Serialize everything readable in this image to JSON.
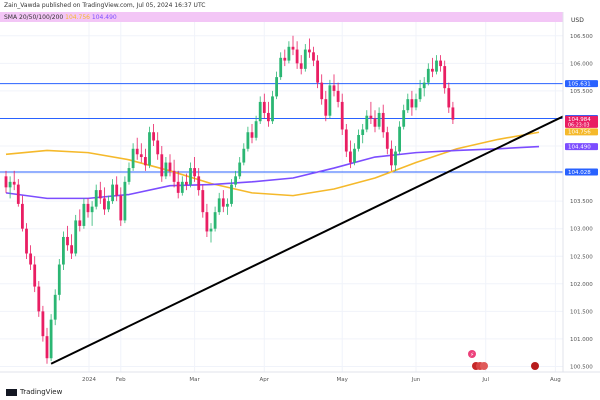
{
  "publisher_line": "Zain_Vawda published on TradingView.com, Jul 05, 2024 16:37 UTC",
  "indicator": {
    "label": "SMA 20/50/100/200",
    "values": [
      {
        "text": "104.756",
        "color": "#f5b92b"
      },
      {
        "text": "104.490",
        "color": "#7c4dff"
      }
    ]
  },
  "currency": "USD",
  "brand": "TradingView",
  "colors": {
    "up": "#2bb673",
    "down": "#e91e63",
    "sma_fast": "#f5b92b",
    "sma_slow": "#7c4dff",
    "hline": "#2962ff",
    "trendline": "#000000",
    "header_band": "#f3c6f6"
  },
  "chart_data": {
    "type": "candlestick",
    "x": [
      "2024",
      "Feb",
      "Mar",
      "Apr",
      "May",
      "Jun",
      "Jul",
      "Aug"
    ],
    "y_ticks": [
      "106.500",
      "106.000",
      "105.500",
      "105.000",
      "104.500",
      "104.000",
      "103.500",
      "103.000",
      "102.500",
      "102.000",
      "101.500",
      "101.000",
      "100.500"
    ],
    "ylim": [
      100.4,
      106.75
    ],
    "horizontal_levels": [
      105.631,
      105.0,
      104.028
    ],
    "price_labels": [
      {
        "text": "105.631",
        "color": "#2962ff",
        "value": 105.631
      },
      {
        "text": "105.000",
        "color": "#2962ff",
        "value": 105.0
      },
      {
        "text": "104.984",
        "color": "#e91e63",
        "value": 104.984,
        "sub": "06:23:03"
      },
      {
        "text": "104.756",
        "color": "#f5b92b",
        "value": 104.756
      },
      {
        "text": "104.490",
        "color": "#7c4dff",
        "value": 104.49
      },
      {
        "text": "104.028",
        "color": "#2962ff",
        "value": 104.028
      }
    ],
    "series": [
      {
        "kind": "sma",
        "color": "#f5b92b",
        "x": [
          0,
          10,
          20,
          30,
          40,
          50,
          60,
          70,
          80,
          90,
          100,
          110,
          120,
          130
        ],
        "y": [
          104.35,
          104.42,
          104.38,
          104.25,
          104.05,
          103.82,
          103.65,
          103.6,
          103.72,
          103.92,
          104.2,
          104.45,
          104.62,
          104.75
        ]
      },
      {
        "kind": "sma",
        "color": "#7c4dff",
        "x": [
          0,
          10,
          20,
          30,
          40,
          50,
          60,
          70,
          80,
          90,
          100,
          110,
          120,
          130
        ],
        "y": [
          103.65,
          103.55,
          103.55,
          103.62,
          103.78,
          103.8,
          103.85,
          103.92,
          104.1,
          104.3,
          104.38,
          104.42,
          104.45,
          104.49
        ]
      }
    ],
    "trendline": {
      "from": [
        11,
        100.55
      ],
      "to": [
        151,
        105.58
      ]
    },
    "candles": [
      [
        103.95,
        104.05,
        103.65,
        103.75
      ],
      [
        103.75,
        103.95,
        103.55,
        103.85
      ],
      [
        103.85,
        104.05,
        103.7,
        103.8
      ],
      [
        103.8,
        103.9,
        103.4,
        103.45
      ],
      [
        103.45,
        103.6,
        102.95,
        103.0
      ],
      [
        103.0,
        103.1,
        102.45,
        102.55
      ],
      [
        102.55,
        102.7,
        102.25,
        102.35
      ],
      [
        102.35,
        102.5,
        101.85,
        101.95
      ],
      [
        101.95,
        102.05,
        101.4,
        101.5
      ],
      [
        101.5,
        101.6,
        100.95,
        101.05
      ],
      [
        101.05,
        101.2,
        100.55,
        100.65
      ],
      [
        100.65,
        101.45,
        100.6,
        101.35
      ],
      [
        101.35,
        101.9,
        101.25,
        101.8
      ],
      [
        101.8,
        102.45,
        101.7,
        102.35
      ],
      [
        102.35,
        102.95,
        102.25,
        102.85
      ],
      [
        102.85,
        103.05,
        102.6,
        102.7
      ],
      [
        102.7,
        102.9,
        102.45,
        102.55
      ],
      [
        102.55,
        103.25,
        102.5,
        103.15
      ],
      [
        103.15,
        103.35,
        102.95,
        103.05
      ],
      [
        103.05,
        103.55,
        103.0,
        103.45
      ],
      [
        103.45,
        103.55,
        103.2,
        103.3
      ],
      [
        103.3,
        103.5,
        103.05,
        103.4
      ],
      [
        103.4,
        103.8,
        103.35,
        103.7
      ],
      [
        103.7,
        103.85,
        103.45,
        103.55
      ],
      [
        103.55,
        103.75,
        103.25,
        103.35
      ],
      [
        103.35,
        103.6,
        103.3,
        103.5
      ],
      [
        103.5,
        103.9,
        103.45,
        103.8
      ],
      [
        103.8,
        103.95,
        103.5,
        103.6
      ],
      [
        103.6,
        103.75,
        103.05,
        103.15
      ],
      [
        103.15,
        103.95,
        103.1,
        103.85
      ],
      [
        103.85,
        104.2,
        103.8,
        104.1
      ],
      [
        104.1,
        104.55,
        104.05,
        104.45
      ],
      [
        104.45,
        104.65,
        104.25,
        104.35
      ],
      [
        104.35,
        104.55,
        104.2,
        104.3
      ],
      [
        104.3,
        104.45,
        104.05,
        104.15
      ],
      [
        104.15,
        104.85,
        104.1,
        104.75
      ],
      [
        104.75,
        104.9,
        104.5,
        104.6
      ],
      [
        104.6,
        104.75,
        104.25,
        104.35
      ],
      [
        104.35,
        104.5,
        103.85,
        103.95
      ],
      [
        103.95,
        104.3,
        103.9,
        104.2
      ],
      [
        104.2,
        104.35,
        103.95,
        104.05
      ],
      [
        104.05,
        104.25,
        103.75,
        103.85
      ],
      [
        103.85,
        104.05,
        103.55,
        103.65
      ],
      [
        103.65,
        103.95,
        103.6,
        103.85
      ],
      [
        103.85,
        104.0,
        103.7,
        103.8
      ],
      [
        103.8,
        104.2,
        103.75,
        104.1
      ],
      [
        104.1,
        104.3,
        103.85,
        103.95
      ],
      [
        103.95,
        104.1,
        103.6,
        103.7
      ],
      [
        103.7,
        103.8,
        103.2,
        103.3
      ],
      [
        103.3,
        103.45,
        102.85,
        102.95
      ],
      [
        102.95,
        103.1,
        102.75,
        103.0
      ],
      [
        103.0,
        103.4,
        102.95,
        103.3
      ],
      [
        103.3,
        103.65,
        103.25,
        103.55
      ],
      [
        103.55,
        103.7,
        103.3,
        103.4
      ],
      [
        103.4,
        103.55,
        103.25,
        103.45
      ],
      [
        103.45,
        103.9,
        103.4,
        103.8
      ],
      [
        103.8,
        104.05,
        103.75,
        103.95
      ],
      [
        103.95,
        104.3,
        103.9,
        104.2
      ],
      [
        104.2,
        104.55,
        104.15,
        104.45
      ],
      [
        104.45,
        104.85,
        104.4,
        104.75
      ],
      [
        104.75,
        104.9,
        104.55,
        104.65
      ],
      [
        104.65,
        105.05,
        104.6,
        104.95
      ],
      [
        104.95,
        105.4,
        104.9,
        105.3
      ],
      [
        105.3,
        105.45,
        105.0,
        105.1
      ],
      [
        105.1,
        105.3,
        104.85,
        104.95
      ],
      [
        104.95,
        105.5,
        104.9,
        105.4
      ],
      [
        105.4,
        105.85,
        105.35,
        105.75
      ],
      [
        105.75,
        106.2,
        105.7,
        106.1
      ],
      [
        106.1,
        106.25,
        105.95,
        106.05
      ],
      [
        106.05,
        106.4,
        106.0,
        106.3
      ],
      [
        106.3,
        106.5,
        106.15,
        106.25
      ],
      [
        106.25,
        106.4,
        105.9,
        106.0
      ],
      [
        106.0,
        106.15,
        105.8,
        105.9
      ],
      [
        105.9,
        106.35,
        105.85,
        106.25
      ],
      [
        106.25,
        106.45,
        106.1,
        106.2
      ],
      [
        106.2,
        106.3,
        105.95,
        106.05
      ],
      [
        106.05,
        106.15,
        105.55,
        105.65
      ],
      [
        105.65,
        105.8,
        105.25,
        105.35
      ],
      [
        105.35,
        105.5,
        104.95,
        105.05
      ],
      [
        105.05,
        105.7,
        105.0,
        105.6
      ],
      [
        105.6,
        105.8,
        105.4,
        105.5
      ],
      [
        105.5,
        105.65,
        105.2,
        105.3
      ],
      [
        105.3,
        105.45,
        104.7,
        104.8
      ],
      [
        104.8,
        104.9,
        104.3,
        104.4
      ],
      [
        104.4,
        104.6,
        104.1,
        104.2
      ],
      [
        104.2,
        104.55,
        104.15,
        104.45
      ],
      [
        104.45,
        104.8,
        104.4,
        104.7
      ],
      [
        104.7,
        104.9,
        104.55,
        104.8
      ],
      [
        104.8,
        105.15,
        104.75,
        105.05
      ],
      [
        105.05,
        105.3,
        104.9,
        105.0
      ],
      [
        105.0,
        105.15,
        104.75,
        104.85
      ],
      [
        104.85,
        105.2,
        104.8,
        105.1
      ],
      [
        105.1,
        105.25,
        104.65,
        104.75
      ],
      [
        104.75,
        104.85,
        104.35,
        104.45
      ],
      [
        104.45,
        104.6,
        104.05,
        104.15
      ],
      [
        104.15,
        104.5,
        104.05,
        104.4
      ],
      [
        104.4,
        104.95,
        104.35,
        104.85
      ],
      [
        104.85,
        105.25,
        104.8,
        105.15
      ],
      [
        105.15,
        105.45,
        105.1,
        105.35
      ],
      [
        105.35,
        105.5,
        105.05,
        105.2
      ],
      [
        105.2,
        105.45,
        105.15,
        105.35
      ],
      [
        105.35,
        105.7,
        105.3,
        105.55
      ],
      [
        105.55,
        105.75,
        105.4,
        105.65
      ],
      [
        105.65,
        106.0,
        105.6,
        105.9
      ],
      [
        105.9,
        106.1,
        105.75,
        105.85
      ],
      [
        105.85,
        106.15,
        105.8,
        106.05
      ],
      [
        106.05,
        106.15,
        105.85,
        105.95
      ],
      [
        105.95,
        106.05,
        105.45,
        105.55
      ],
      [
        105.55,
        105.65,
        105.1,
        105.2
      ],
      [
        105.2,
        105.3,
        104.9,
        104.98
      ]
    ]
  }
}
